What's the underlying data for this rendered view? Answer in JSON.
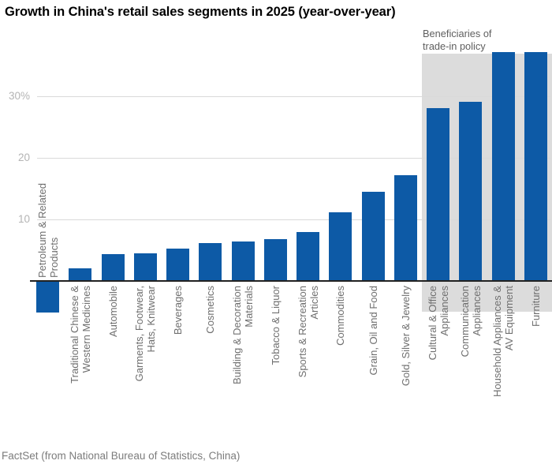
{
  "chart_data": {
    "type": "bar",
    "title": "Growth in China's retail sales segments in 2025 (year-over-year)",
    "source": "FactSet (from National Bureau of Statistics, China)",
    "categories": [
      "Petroleum & Related\nProducts",
      "Traditional Chinese &\nWestern Medicines",
      "Automobile",
      "Garments, Footwear,\nHats, Knitwear",
      "Beverages",
      "Cosmetics",
      "Building & Decoration\nMaterials",
      "Tobacco & Liquor",
      "Sports & Recreation\nArticles",
      "Commodities",
      "Grain, Oil and Food",
      "Gold, Silver & Jewelry",
      "Cultural & Office\nAppliances",
      "Communication\nAppliances",
      "Household Appliances &\nAV Equipment",
      "Furniture"
    ],
    "values": [
      -5.3,
      2.1,
      4.3,
      4.5,
      5.3,
      6.2,
      6.4,
      6.8,
      7.9,
      11.2,
      14.5,
      17.2,
      28.1,
      29.1,
      37.2,
      37.2
    ],
    "unit": "%",
    "xlabel": "",
    "ylabel": "",
    "ylim": [
      -5.3,
      37.2
    ],
    "yticks": [
      {
        "value": 10,
        "label": "10"
      },
      {
        "value": 20,
        "label": "20"
      },
      {
        "value": 30,
        "label": "30%"
      }
    ],
    "grid": "horizontal",
    "legend": "none",
    "annotation": {
      "text": "Beneficiaries of\ntrade-in policy",
      "from_index": 12,
      "to_index": 15,
      "region_color": "#dcdcdc"
    },
    "colors": {
      "bar": "#0d5aa6",
      "region": "#dcdcdc",
      "gridline": "#d9d9d9",
      "axis_line": "#222222",
      "tick_text": "#b4b4b4",
      "category_text": "#6f6f6f",
      "annotation_text": "#5f5f5f",
      "source_text": "#7c7c7c",
      "title_text": "#000000"
    }
  }
}
